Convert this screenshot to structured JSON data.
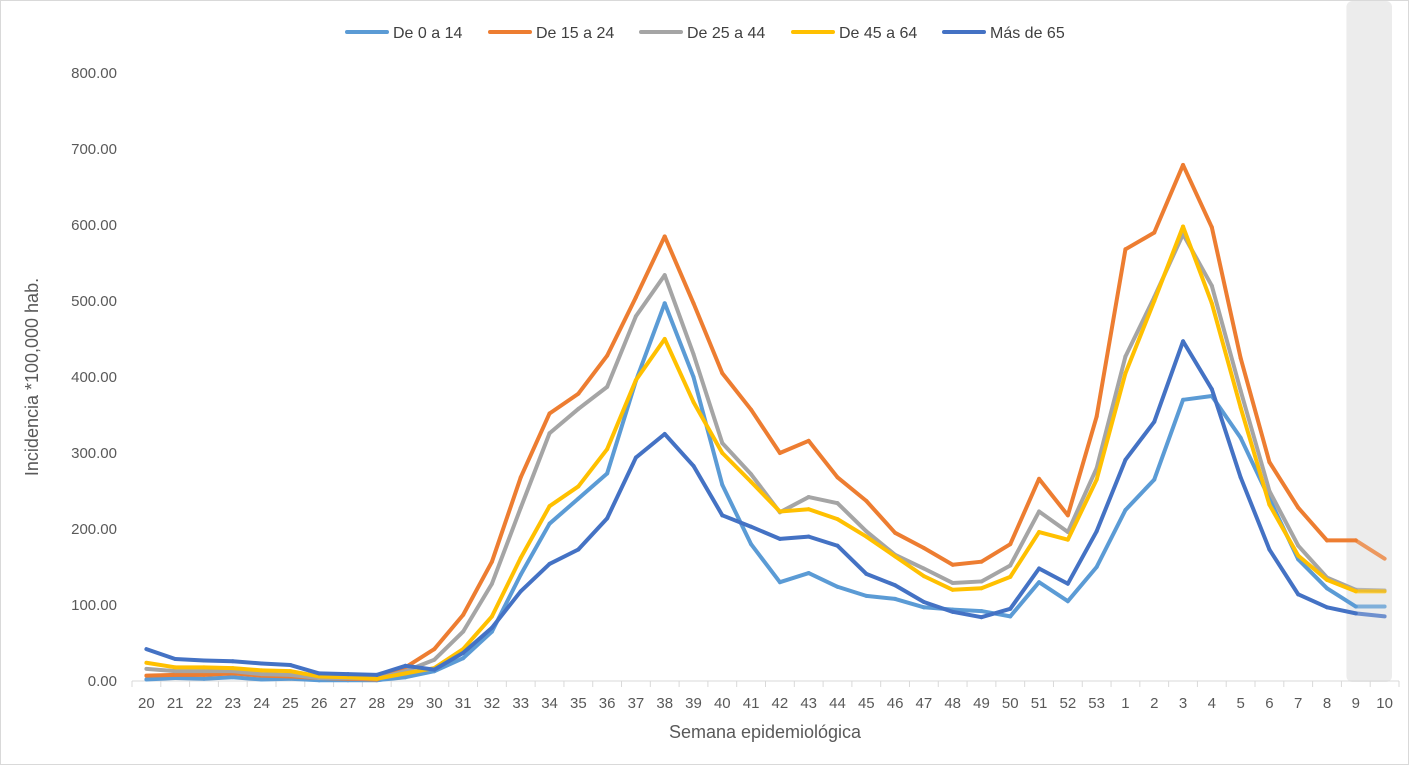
{
  "chart_data": {
    "type": "line",
    "xlabel": "Semana epidemiológica",
    "ylabel": "Incidencia *100,000 hab.",
    "ylim": [
      0,
      800
    ],
    "yticks": [
      "0.00",
      "100.00",
      "200.00",
      "300.00",
      "400.00",
      "500.00",
      "600.00",
      "700.00",
      "800.00"
    ],
    "grid": false,
    "legend_position": "top",
    "highlight": {
      "categories": [
        "9",
        "10"
      ],
      "color": "#ececec"
    },
    "categories": [
      "20",
      "21",
      "22",
      "23",
      "24",
      "25",
      "26",
      "27",
      "28",
      "29",
      "30",
      "31",
      "32",
      "33",
      "34",
      "35",
      "36",
      "37",
      "38",
      "39",
      "40",
      "41",
      "42",
      "43",
      "44",
      "45",
      "46",
      "47",
      "48",
      "49",
      "50",
      "51",
      "52",
      "53",
      "1",
      "2",
      "3",
      "4",
      "5",
      "6",
      "7",
      "8",
      "9",
      "10"
    ],
    "series": [
      {
        "name": "De 0 a 14",
        "color": "#5b9bd5",
        "values": [
          2,
          4,
          3,
          5,
          2,
          3,
          1,
          1,
          1,
          5,
          13,
          30,
          65,
          140,
          207,
          240,
          273,
          395,
          497,
          400,
          258,
          180,
          130,
          142,
          124,
          112,
          108,
          97,
          94,
          92,
          85,
          130,
          105,
          150,
          225,
          265,
          370,
          375,
          320,
          240,
          160,
          122,
          98,
          98
        ]
      },
      {
        "name": "De 15 a 24",
        "color": "#ed7d31",
        "values": [
          7,
          8,
          8,
          10,
          7,
          6,
          4,
          3,
          2,
          18,
          42,
          87,
          157,
          268,
          352,
          378,
          428,
          505,
          585,
          497,
          405,
          357,
          300,
          316,
          268,
          237,
          195,
          175,
          153,
          157,
          180,
          266,
          218,
          348,
          568,
          590,
          679,
          597,
          425,
          288,
          228,
          185,
          185,
          161
        ]
      },
      {
        "name": "De 25 a 44",
        "color": "#a5a5a5",
        "values": [
          16,
          13,
          13,
          13,
          9,
          8,
          4,
          4,
          3,
          13,
          28,
          65,
          128,
          228,
          326,
          358,
          387,
          480,
          534,
          430,
          313,
          272,
          222,
          242,
          234,
          197,
          166,
          148,
          129,
          131,
          152,
          223,
          196,
          280,
          427,
          505,
          588,
          520,
          382,
          250,
          178,
          136,
          120,
          119
        ]
      },
      {
        "name": "De 45 a 64",
        "color": "#ffc000",
        "values": [
          24,
          18,
          18,
          17,
          14,
          13,
          6,
          5,
          3,
          10,
          17,
          42,
          85,
          162,
          230,
          256,
          305,
          396,
          450,
          367,
          300,
          262,
          223,
          226,
          213,
          190,
          164,
          138,
          120,
          122,
          137,
          196,
          186,
          265,
          405,
          500,
          598,
          497,
          360,
          232,
          165,
          133,
          118,
          118
        ]
      },
      {
        "name": "Más de 65",
        "color": "#4472c4",
        "values": [
          42,
          29,
          27,
          26,
          23,
          21,
          10,
          9,
          8,
          20,
          15,
          37,
          70,
          118,
          154,
          173,
          214,
          294,
          325,
          283,
          218,
          203,
          187,
          190,
          178,
          141,
          126,
          104,
          91,
          84,
          95,
          148,
          128,
          197,
          291,
          341,
          447,
          384,
          268,
          173,
          114,
          97,
          89,
          85
        ]
      }
    ]
  }
}
